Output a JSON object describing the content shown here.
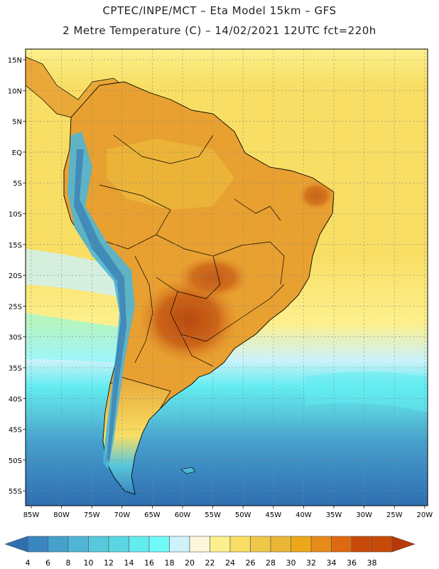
{
  "header": {
    "line1": "CPTEC/INPE/MCT –  Eta Model 15km – GFS",
    "line2": "2 Metre Temperature (C) – 14/02/2021 12UTC fct=220h"
  },
  "map": {
    "lat_labels": [
      "15N",
      "10N",
      "5N",
      "EQ",
      "5S",
      "10S",
      "15S",
      "20S",
      "25S",
      "30S",
      "35S",
      "40S",
      "45S",
      "50S",
      "55S"
    ],
    "lon_labels": [
      "85W",
      "80W",
      "75W",
      "70W",
      "65W",
      "60W",
      "55W",
      "50W",
      "45W",
      "40W",
      "35W",
      "30W",
      "25W",
      "20W"
    ]
  },
  "colorbar": {
    "ticks": [
      "4",
      "6",
      "8",
      "10",
      "12",
      "14",
      "16",
      "18",
      "20",
      "22",
      "24",
      "26",
      "28",
      "30",
      "32",
      "34",
      "36",
      "38"
    ],
    "colors": [
      "#2e6fb0",
      "#3a86c0",
      "#46a0cc",
      "#4fb6d6",
      "#58c8dc",
      "#5ad6e2",
      "#62ecf0",
      "#6ffaf8",
      "#cdf2fa",
      "#fdf6dc",
      "#fdf08c",
      "#f8de64",
      "#f0c848",
      "#ebb638",
      "#eca818",
      "#e78a18",
      "#dd6a10",
      "#c84a08",
      "#b83808"
    ]
  },
  "colors": {
    "ocean_north": "#f8de64",
    "ocean_south": "#2e6fb0",
    "land_hot": "#c05818",
    "land_warm": "#e8a030",
    "andes_cold": "#4fb6d6"
  }
}
